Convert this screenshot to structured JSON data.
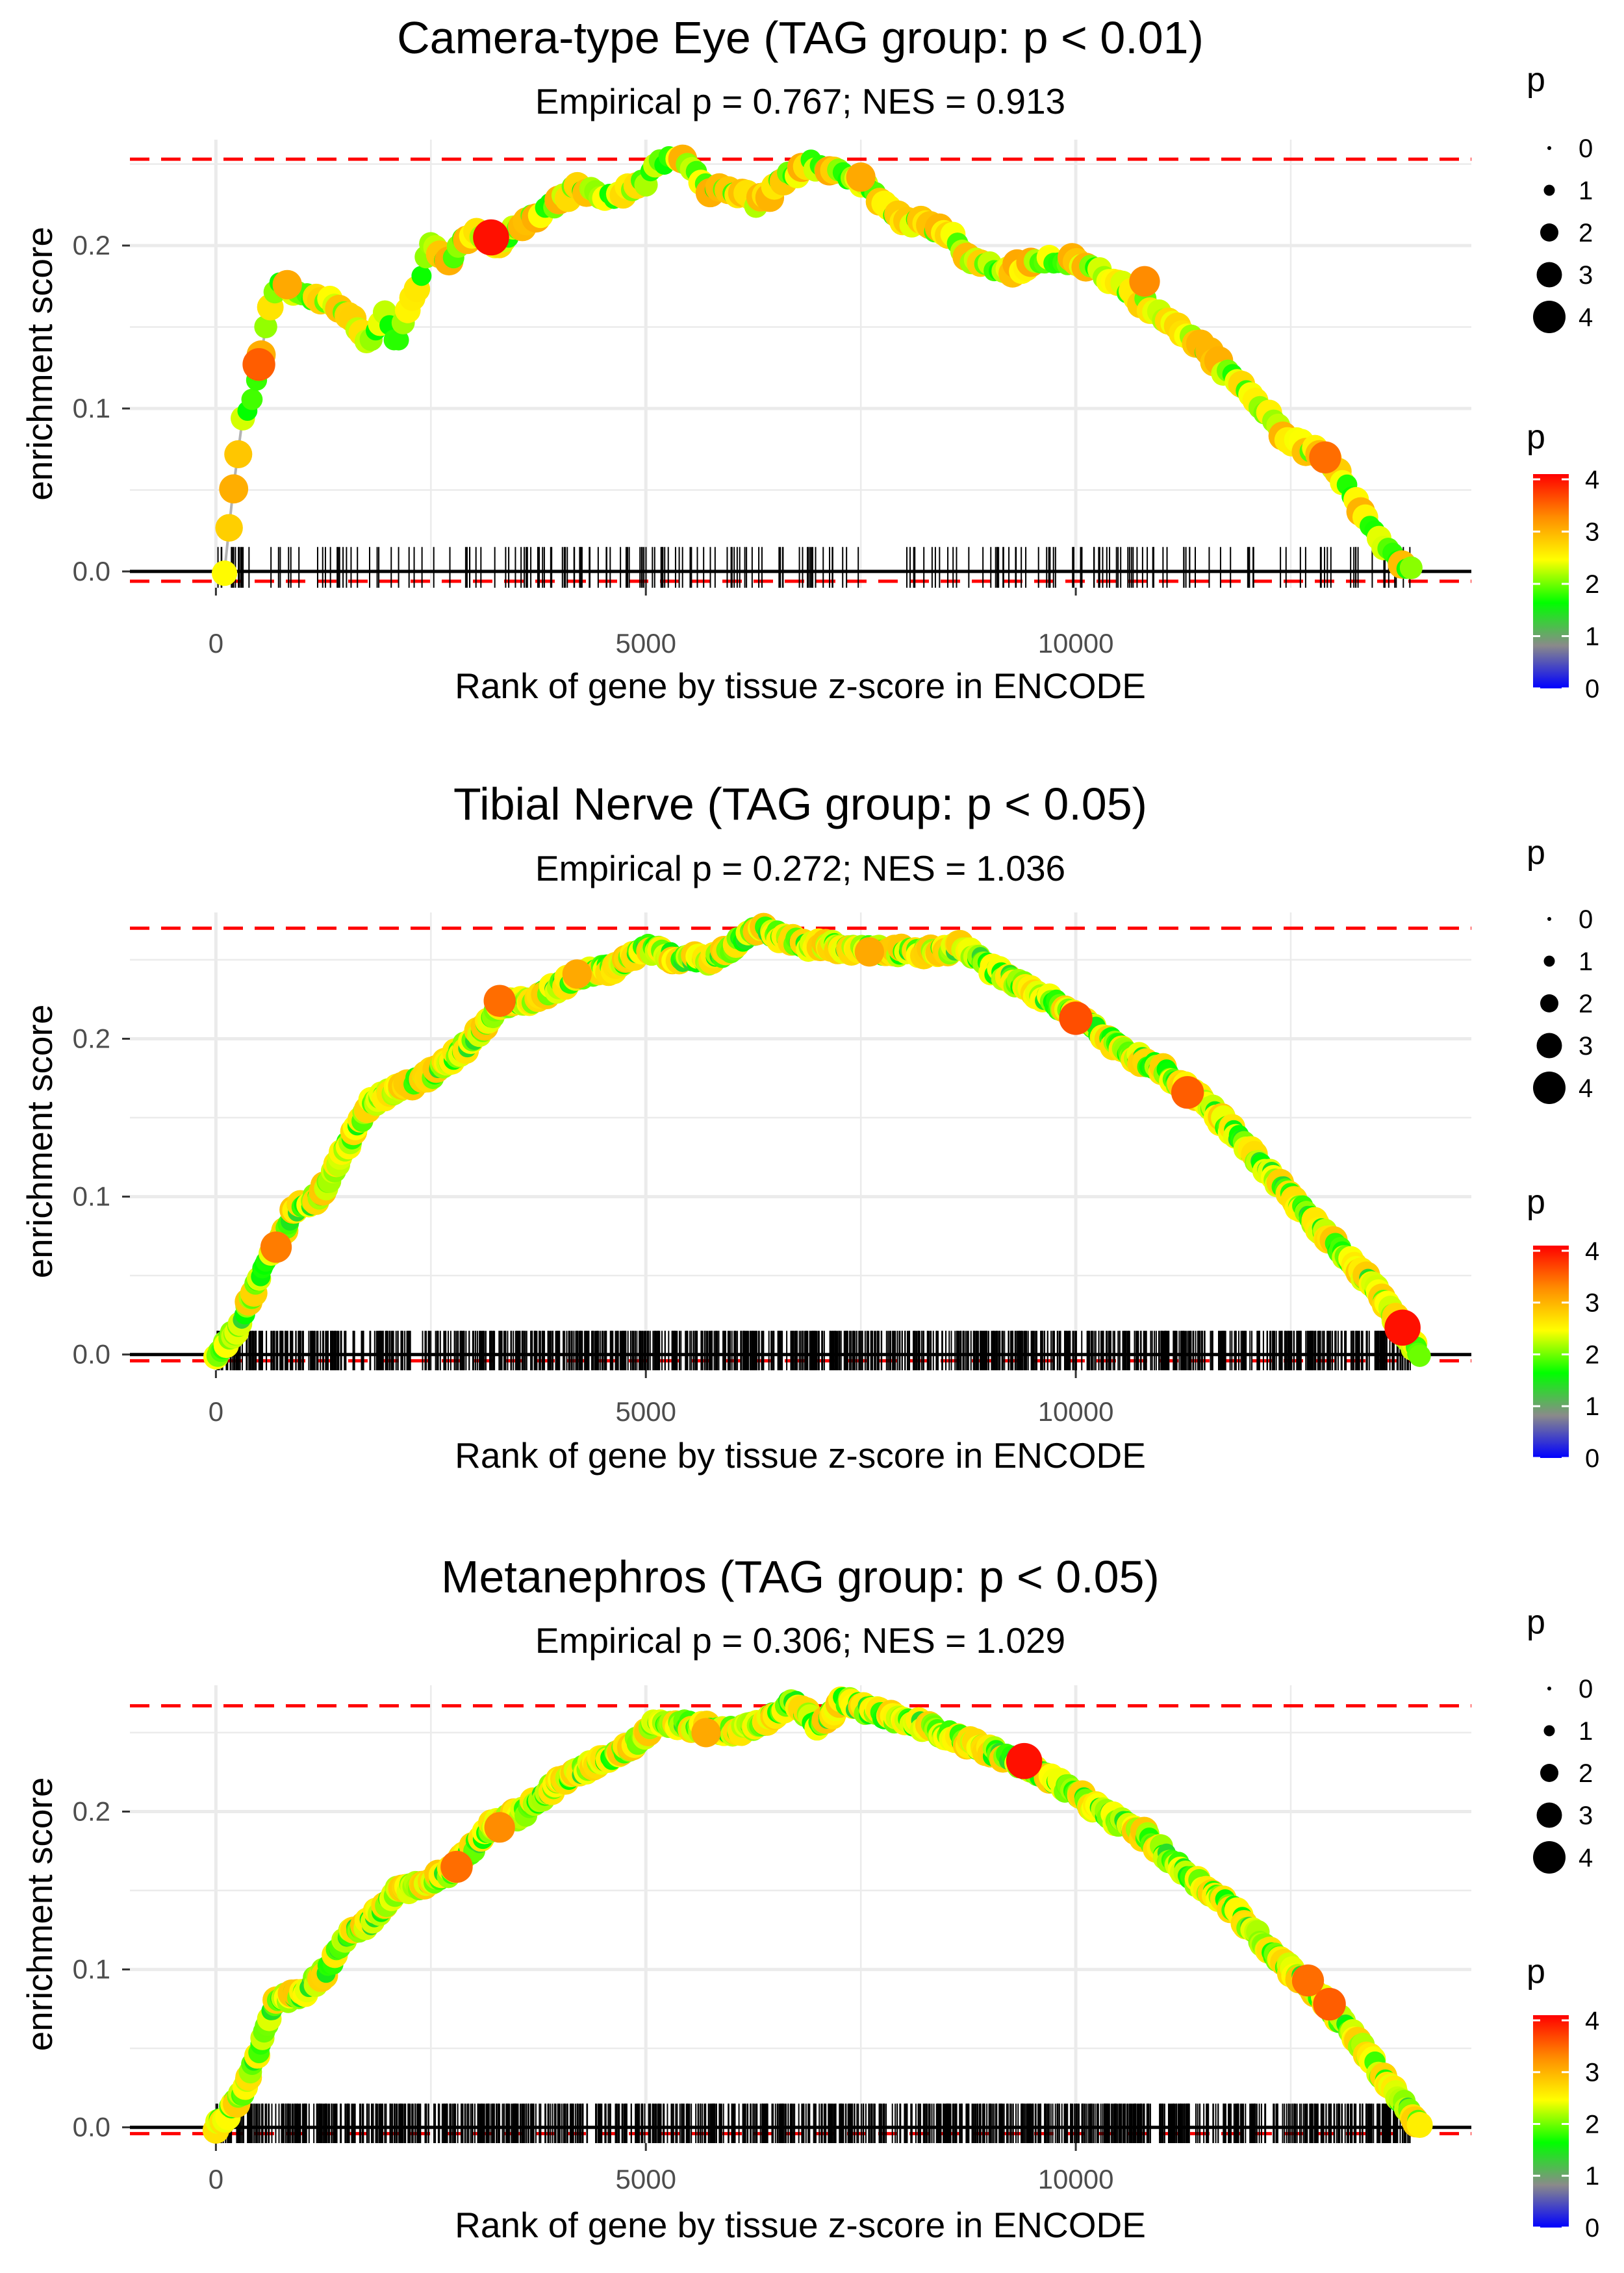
{
  "colors": {
    "background": "#ffffff",
    "grid": "#ebebeb",
    "threshold_line": "#ff0000",
    "baseline": "#000000",
    "es_line": "#b3b3b3",
    "rug": "#000000",
    "gradient_stops": [
      "#0000ff",
      "#8a8a8a",
      "#00ff00",
      "#ffff00",
      "#ff8c00",
      "#ff0000"
    ]
  },
  "chart_data": [
    {
      "type": "line",
      "title": "Camera-type Eye (TAG group: p < 0.01)",
      "subtitle": "Empirical p = 0.767; NES = 0.913",
      "xlabel": "Rank of gene by tissue z-score in ENCODE",
      "ylabel": "enrichment score",
      "xlim": [
        -1000,
        14600
      ],
      "ylim": [
        -0.01,
        0.265
      ],
      "xticks": [
        0,
        5000,
        10000
      ],
      "xtick_labels": [
        "0",
        "5000",
        "10000"
      ],
      "yticks": [
        0.0,
        0.1,
        0.2
      ],
      "ytick_labels": [
        "0.0",
        "0.1",
        "0.2"
      ],
      "threshold_upper": 0.253,
      "threshold_lower": -0.006,
      "rug_count": 230,
      "es_curve": [
        [
          100,
          0.0
        ],
        [
          200,
          0.05
        ],
        [
          300,
          0.09
        ],
        [
          400,
          0.1
        ],
        [
          500,
          0.12
        ],
        [
          600,
          0.16
        ],
        [
          700,
          0.175
        ],
        [
          850,
          0.175
        ],
        [
          1000,
          0.17
        ],
        [
          1200,
          0.168
        ],
        [
          1500,
          0.16
        ],
        [
          1800,
          0.14
        ],
        [
          1950,
          0.16
        ],
        [
          2100,
          0.14
        ],
        [
          2300,
          0.17
        ],
        [
          2500,
          0.2
        ],
        [
          2700,
          0.19
        ],
        [
          3000,
          0.21
        ],
        [
          3200,
          0.2
        ],
        [
          3500,
          0.21
        ],
        [
          3800,
          0.22
        ],
        [
          4200,
          0.235
        ],
        [
          4600,
          0.23
        ],
        [
          5000,
          0.24
        ],
        [
          5100,
          0.25
        ],
        [
          5400,
          0.255
        ],
        [
          5700,
          0.235
        ],
        [
          6000,
          0.235
        ],
        [
          6300,
          0.225
        ],
        [
          6600,
          0.24
        ],
        [
          6900,
          0.25
        ],
        [
          7200,
          0.245
        ],
        [
          7500,
          0.24
        ],
        [
          8000,
          0.215
        ],
        [
          8500,
          0.21
        ],
        [
          8800,
          0.19
        ],
        [
          9200,
          0.185
        ],
        [
          9600,
          0.19
        ],
        [
          10000,
          0.19
        ],
        [
          10400,
          0.18
        ],
        [
          10800,
          0.165
        ],
        [
          11200,
          0.15
        ],
        [
          11600,
          0.13
        ],
        [
          12000,
          0.11
        ],
        [
          12500,
          0.08
        ],
        [
          12900,
          0.07
        ],
        [
          13300,
          0.04
        ],
        [
          13600,
          0.015
        ],
        [
          13900,
          0.0
        ]
      ],
      "highlight_points": [
        {
          "x": 500,
          "y": 0.127,
          "p": 3.5
        },
        {
          "x": 830,
          "y": 0.176,
          "p": 3.0
        },
        {
          "x": 3200,
          "y": 0.205,
          "p": 4.0
        },
        {
          "x": 7500,
          "y": 0.242,
          "p": 3.0
        },
        {
          "x": 12900,
          "y": 0.07,
          "p": 3.4
        },
        {
          "x": 10800,
          "y": 0.178,
          "p": 3.2
        }
      ],
      "size_legend": {
        "title": "p",
        "values": [
          "0",
          "1",
          "2",
          "3",
          "4"
        ]
      },
      "color_legend": {
        "title": "p",
        "values": [
          "0",
          "1",
          "2",
          "3",
          "4"
        ]
      }
    },
    {
      "type": "line",
      "title": "Tibial Nerve (TAG group: p < 0.05)",
      "subtitle": "Empirical p = 0.272; NES = 1.036",
      "xlabel": "Rank of gene by tissue z-score in ENCODE",
      "ylabel": "enrichment score",
      "xlim": [
        -1000,
        14600
      ],
      "ylim": [
        -0.01,
        0.28
      ],
      "xticks": [
        0,
        5000,
        10000
      ],
      "xtick_labels": [
        "0",
        "5000",
        "10000"
      ],
      "yticks": [
        0.0,
        0.1,
        0.2
      ],
      "ytick_labels": [
        "0.0",
        "0.1",
        "0.2"
      ],
      "threshold_upper": 0.27,
      "threshold_lower": -0.004,
      "rug_count": 1100,
      "es_curve": [
        [
          0,
          0.0
        ],
        [
          300,
          0.02
        ],
        [
          500,
          0.05
        ],
        [
          700,
          0.07
        ],
        [
          900,
          0.09
        ],
        [
          1200,
          0.1
        ],
        [
          1500,
          0.13
        ],
        [
          1800,
          0.16
        ],
        [
          2200,
          0.17
        ],
        [
          2600,
          0.18
        ],
        [
          3000,
          0.2
        ],
        [
          3300,
          0.22
        ],
        [
          3700,
          0.225
        ],
        [
          4200,
          0.24
        ],
        [
          4600,
          0.245
        ],
        [
          5000,
          0.258
        ],
        [
          5400,
          0.25
        ],
        [
          5800,
          0.25
        ],
        [
          6300,
          0.27
        ],
        [
          6800,
          0.26
        ],
        [
          7300,
          0.258
        ],
        [
          7800,
          0.255
        ],
        [
          8300,
          0.255
        ],
        [
          8700,
          0.258
        ],
        [
          9000,
          0.245
        ],
        [
          9500,
          0.23
        ],
        [
          10000,
          0.215
        ],
        [
          10500,
          0.195
        ],
        [
          11000,
          0.18
        ],
        [
          11500,
          0.16
        ],
        [
          12000,
          0.13
        ],
        [
          12500,
          0.1
        ],
        [
          13000,
          0.07
        ],
        [
          13500,
          0.04
        ],
        [
          13800,
          0.015
        ],
        [
          14000,
          0.0
        ]
      ],
      "highlight_points": [
        {
          "x": 3300,
          "y": 0.224,
          "p": 3.4
        },
        {
          "x": 4200,
          "y": 0.241,
          "p": 3.0
        },
        {
          "x": 700,
          "y": 0.068,
          "p": 3.3
        },
        {
          "x": 10000,
          "y": 0.213,
          "p": 3.6
        },
        {
          "x": 11300,
          "y": 0.166,
          "p": 3.5
        },
        {
          "x": 13800,
          "y": 0.017,
          "p": 4.0
        },
        {
          "x": 7600,
          "y": 0.255,
          "p": 3.0
        }
      ],
      "size_legend": {
        "title": "p",
        "values": [
          "0",
          "1",
          "2",
          "3",
          "4"
        ]
      },
      "color_legend": {
        "title": "p",
        "values": [
          "0",
          "1",
          "2",
          "3",
          "4"
        ]
      }
    },
    {
      "type": "line",
      "title": "Metanephros (TAG group: p < 0.05)",
      "subtitle": "Empirical p = 0.306; NES = 1.029",
      "xlabel": "Rank of gene by tissue z-score in ENCODE",
      "ylabel": "enrichment score",
      "xlim": [
        -1000,
        14600
      ],
      "ylim": [
        -0.01,
        0.28
      ],
      "xticks": [
        0,
        5000,
        10000
      ],
      "xtick_labels": [
        "0",
        "5000",
        "10000"
      ],
      "yticks": [
        0.0,
        0.1,
        0.2
      ],
      "ytick_labels": [
        "0.0",
        "0.1",
        "0.2"
      ],
      "threshold_upper": 0.267,
      "threshold_lower": -0.004,
      "rug_count": 1100,
      "es_curve": [
        [
          0,
          0.0
        ],
        [
          300,
          0.02
        ],
        [
          500,
          0.05
        ],
        [
          700,
          0.08
        ],
        [
          1000,
          0.085
        ],
        [
          1300,
          0.1
        ],
        [
          1500,
          0.12
        ],
        [
          1800,
          0.13
        ],
        [
          2100,
          0.15
        ],
        [
          2500,
          0.155
        ],
        [
          2800,
          0.165
        ],
        [
          3200,
          0.19
        ],
        [
          3600,
          0.2
        ],
        [
          4000,
          0.22
        ],
        [
          4400,
          0.23
        ],
        [
          4800,
          0.24
        ],
        [
          5100,
          0.255
        ],
        [
          5500,
          0.255
        ],
        [
          5900,
          0.25
        ],
        [
          6300,
          0.255
        ],
        [
          6700,
          0.27
        ],
        [
          7000,
          0.255
        ],
        [
          7300,
          0.27
        ],
        [
          7700,
          0.262
        ],
        [
          8200,
          0.255
        ],
        [
          8700,
          0.245
        ],
        [
          9300,
          0.232
        ],
        [
          9800,
          0.218
        ],
        [
          10300,
          0.2
        ],
        [
          10800,
          0.185
        ],
        [
          11300,
          0.16
        ],
        [
          11800,
          0.14
        ],
        [
          12300,
          0.11
        ],
        [
          12800,
          0.085
        ],
        [
          13200,
          0.06
        ],
        [
          13600,
          0.03
        ],
        [
          14000,
          0.0
        ]
      ],
      "highlight_points": [
        {
          "x": 2800,
          "y": 0.165,
          "p": 3.4
        },
        {
          "x": 3300,
          "y": 0.19,
          "p": 3.2
        },
        {
          "x": 9400,
          "y": 0.232,
          "p": 4.0
        },
        {
          "x": 12700,
          "y": 0.093,
          "p": 3.4
        },
        {
          "x": 12950,
          "y": 0.078,
          "p": 3.5
        },
        {
          "x": 5700,
          "y": 0.25,
          "p": 3.0
        }
      ],
      "size_legend": {
        "title": "p",
        "values": [
          "0",
          "1",
          "2",
          "3",
          "4"
        ]
      },
      "color_legend": {
        "title": "p",
        "values": [
          "0",
          "1",
          "2",
          "3",
          "4"
        ]
      }
    }
  ]
}
